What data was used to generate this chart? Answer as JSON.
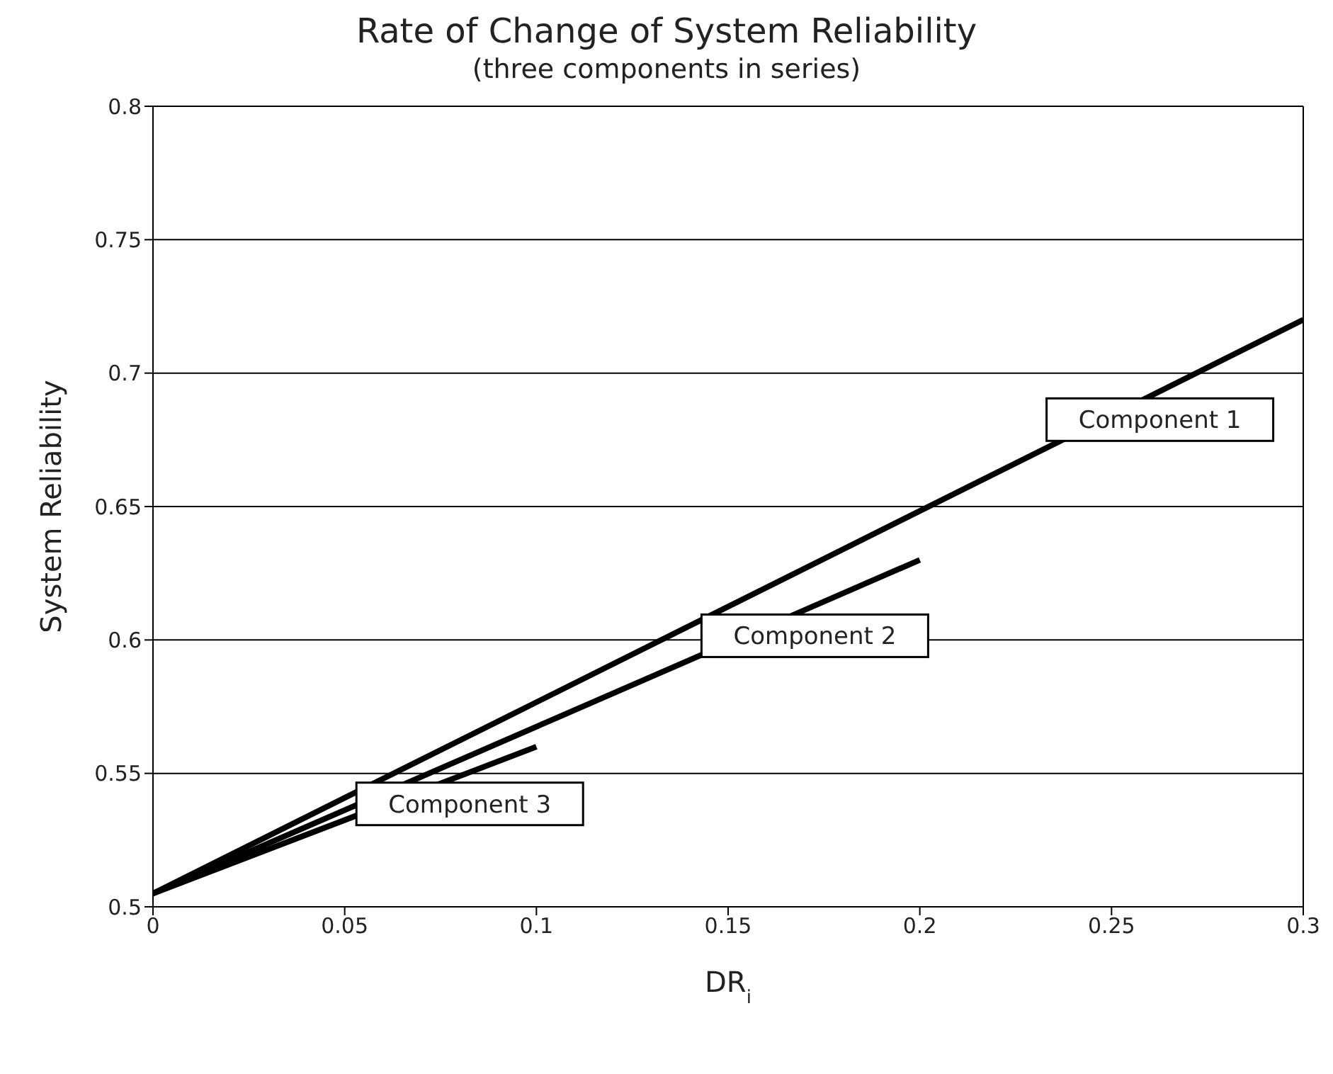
{
  "chart_data": {
    "type": "line",
    "title": "Rate of Change of System Reliability",
    "subtitle": "(three components in series)",
    "xlabel": "DR$_{i}$",
    "ylabel": "System Reliability",
    "series": [
      {
        "name": "Component 1",
        "color": "#000000",
        "x": [
          0,
          0.3
        ],
        "values": [
          0.505,
          0.72
        ]
      },
      {
        "name": "Component 2",
        "color": "#000000",
        "x": [
          0,
          0.2
        ],
        "values": [
          0.505,
          0.63
        ]
      },
      {
        "name": "Component 3",
        "color": "#000000",
        "x": [
          0,
          0.1
        ],
        "values": [
          0.505,
          0.56
        ]
      }
    ],
    "xlim": [
      0,
      0.3
    ],
    "xticks": [
      0,
      0.05,
      0.1,
      0.15,
      0.2,
      0.25,
      0.3
    ],
    "ylim": [
      0.5,
      0.8
    ],
    "yticks": [
      0.5,
      0.55,
      0.6,
      0.65,
      0.7,
      0.75,
      0.8
    ],
    "grid": "y",
    "legend": false,
    "marker": "none",
    "line_style": "solid"
  }
}
